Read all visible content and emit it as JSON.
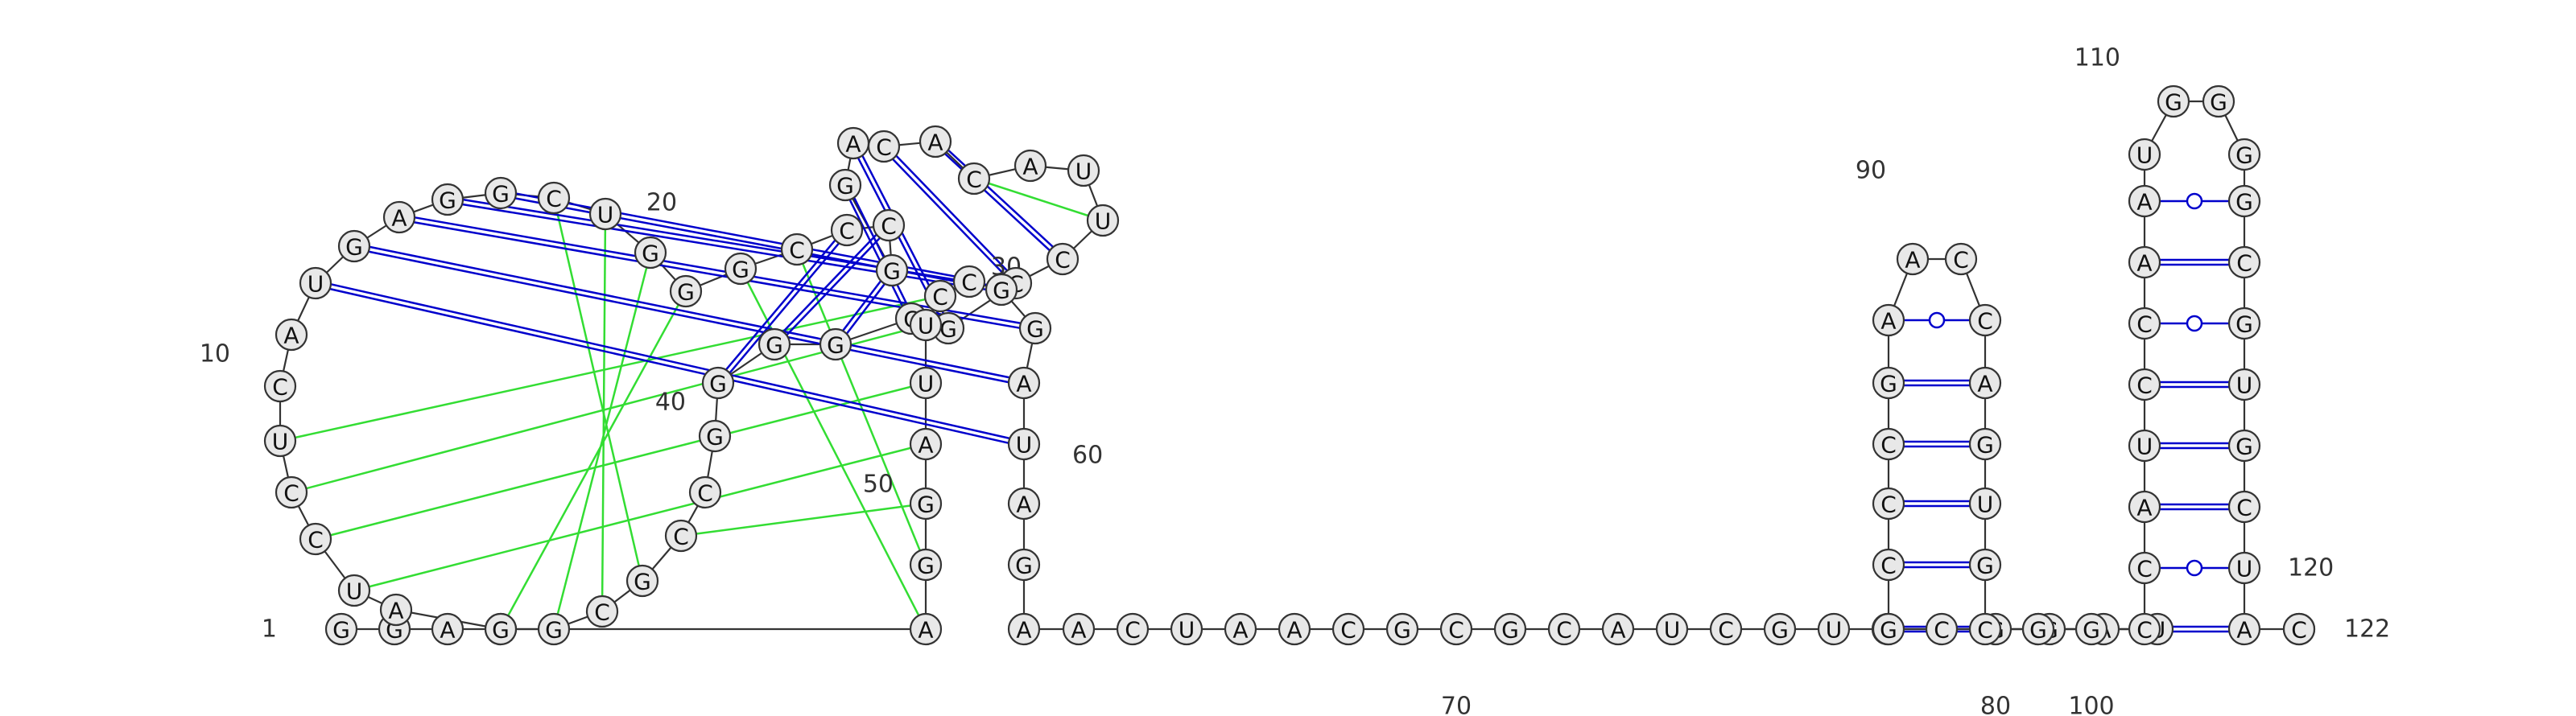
{
  "sequence": "GGAGAUCCUCAUGAGGCUGGGCCCGGACACAUUCCGCGGGGCCGCGGAGGAUUCCGGAUAGAACUAACGCGCAUCGUCCGGAUGCCCGAACCAGUGCCGGCCAUCCAAUGGGGCGUGCUAUC",
  "backbone_color": "#333333",
  "pair_color": "#0000cc",
  "tertiary_color": "#33dd33",
  "position_labels": [
    {
      "n": 1,
      "text": "1"
    },
    {
      "n": 10,
      "text": "10"
    },
    {
      "n": 20,
      "text": "20"
    },
    {
      "n": 30,
      "text": "30"
    },
    {
      "n": 40,
      "text": "40"
    },
    {
      "n": 50,
      "text": "50"
    },
    {
      "n": 60,
      "text": "60"
    },
    {
      "n": 70,
      "text": "70"
    },
    {
      "n": 80,
      "text": "80"
    },
    {
      "n": 90,
      "text": "90"
    },
    {
      "n": 100,
      "text": "100"
    },
    {
      "n": 110,
      "text": "110"
    },
    {
      "n": 120,
      "text": "120"
    },
    {
      "n": 122,
      "text": "122"
    }
  ],
  "base_pairs": [
    {
      "i": 12,
      "j": 59,
      "type": "wc"
    },
    {
      "i": 13,
      "j": 58,
      "type": "wc"
    },
    {
      "i": 14,
      "j": 57,
      "type": "wc"
    },
    {
      "i": 15,
      "j": 56,
      "type": "wc"
    },
    {
      "i": 16,
      "j": 55,
      "type": "wc"
    },
    {
      "i": 23,
      "j": 40,
      "type": "wc"
    },
    {
      "i": 24,
      "j": 39,
      "type": "wc"
    },
    {
      "i": 25,
      "j": 38,
      "type": "wc"
    },
    {
      "i": 26,
      "j": 37,
      "type": "wc"
    },
    {
      "i": 27,
      "j": 36,
      "type": "wc"
    },
    {
      "i": 28,
      "j": 35,
      "type": "wc"
    },
    {
      "i": 29,
      "j": 34,
      "type": "wc"
    },
    {
      "i": 30,
      "j": 33,
      "type": "tertiary"
    },
    {
      "i": 6,
      "j": 51,
      "type": "tertiary"
    },
    {
      "i": 7,
      "j": 52,
      "type": "tertiary"
    },
    {
      "i": 8,
      "j": 53,
      "type": "tertiary"
    },
    {
      "i": 9,
      "j": 54,
      "type": "tertiary"
    },
    {
      "i": 44,
      "j": 17,
      "type": "tertiary"
    },
    {
      "i": 45,
      "j": 18,
      "type": "tertiary"
    },
    {
      "i": 46,
      "j": 19,
      "type": "tertiary"
    },
    {
      "i": 47,
      "j": 20,
      "type": "tertiary"
    },
    {
      "i": 48,
      "j": 21,
      "type": "tertiary"
    },
    {
      "i": 49,
      "j": 22,
      "type": "tertiary"
    },
    {
      "i": 50,
      "j": 43,
      "type": "tertiary"
    },
    {
      "i": 84,
      "j": 97,
      "type": "wc"
    },
    {
      "i": 85,
      "j": 96,
      "type": "wc"
    },
    {
      "i": 86,
      "j": 95,
      "type": "wc"
    },
    {
      "i": 87,
      "j": 94,
      "type": "wc"
    },
    {
      "i": 88,
      "j": 93,
      "type": "wc"
    },
    {
      "i": 89,
      "j": 92,
      "type": "gu"
    },
    {
      "i": 101,
      "j": 120,
      "type": "wc"
    },
    {
      "i": 102,
      "j": 119,
      "type": "gu"
    },
    {
      "i": 103,
      "j": 118,
      "type": "wc"
    },
    {
      "i": 104,
      "j": 117,
      "type": "wc"
    },
    {
      "i": 105,
      "j": 116,
      "type": "wc"
    },
    {
      "i": 106,
      "j": 115,
      "type": "gu"
    },
    {
      "i": 107,
      "j": 114,
      "type": "wc"
    },
    {
      "i": 108,
      "j": 113,
      "type": "gu"
    }
  ]
}
